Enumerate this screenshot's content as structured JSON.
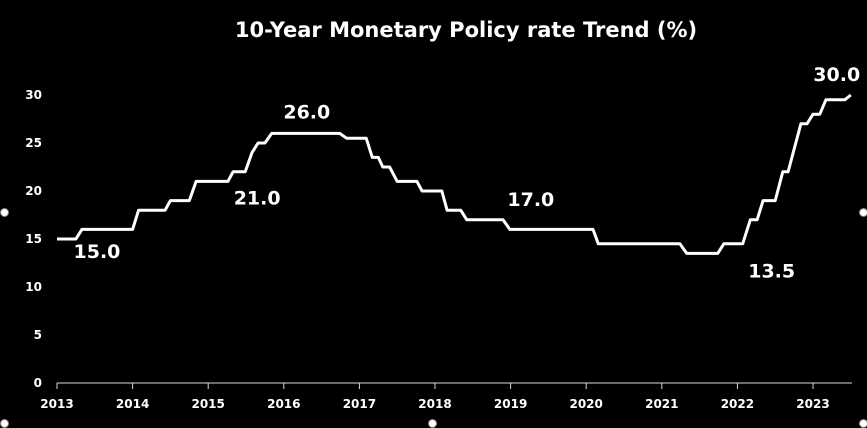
{
  "chart_data": {
    "type": "line",
    "title": "10-Year Monetary Policy rate Trend (%)",
    "xlabel": "",
    "ylabel": "",
    "xlim": [
      2013,
      2023.5
    ],
    "ylim": [
      0,
      30
    ],
    "x_ticks": [
      "2013",
      "2014",
      "2015",
      "2016",
      "2017",
      "2018",
      "2019",
      "2020",
      "2021",
      "2022",
      "2023"
    ],
    "y_ticks": [
      "0",
      "5",
      "10",
      "15",
      "20",
      "25",
      "30"
    ],
    "grid": false,
    "legend": "none",
    "line_color": "#ffffff",
    "background": "#000000",
    "series": [
      {
        "x": [
          2013.0,
          2013.25,
          2013.33,
          2014.0,
          2014.08,
          2014.43,
          2014.5,
          2014.75,
          2014.84,
          2015.26,
          2015.33,
          2015.49,
          2015.58,
          2015.66,
          2015.75,
          2015.84,
          2016.74,
          2016.83,
          2017.09,
          2017.17,
          2017.25,
          2017.31,
          2017.4,
          2017.5,
          2017.76,
          2017.83,
          2018.09,
          2018.16,
          2018.34,
          2018.42,
          2018.9,
          2018.99,
          2020.09,
          2020.16,
          2021.24,
          2021.33,
          2021.74,
          2021.82,
          2022.07,
          2022.17,
          2022.26,
          2022.34,
          2022.5,
          2022.6,
          2022.67,
          2022.84,
          2022.92,
          2023.0,
          2023.09,
          2023.17,
          2023.42,
          2023.5
        ],
        "y": [
          15,
          15,
          16,
          16,
          18,
          18,
          19,
          19,
          21,
          21,
          22,
          22,
          24,
          25,
          25,
          26,
          26,
          25.5,
          25.5,
          23.5,
          23.5,
          22.5,
          22.5,
          21,
          21,
          20,
          20,
          18,
          18,
          17,
          17,
          16,
          16,
          14.5,
          14.5,
          13.5,
          13.5,
          14.5,
          14.5,
          17,
          17,
          19,
          19,
          22,
          22,
          27,
          27,
          28,
          28,
          29.5,
          29.5,
          30
        ]
      }
    ],
    "annotations": [
      {
        "text": "15.0",
        "x": 2013.33,
        "y": 15
      },
      {
        "text": "21.0",
        "x": 2015.33,
        "y": 21
      },
      {
        "text": "26.0",
        "x": 2016.0,
        "y": 26
      },
      {
        "text": "17.0",
        "x": 2018.99,
        "y": 17
      },
      {
        "text": "13.5",
        "x": 2022.07,
        "y": 13.5
      },
      {
        "text": "30.0",
        "x": 2023.42,
        "y": 30
      }
    ]
  }
}
